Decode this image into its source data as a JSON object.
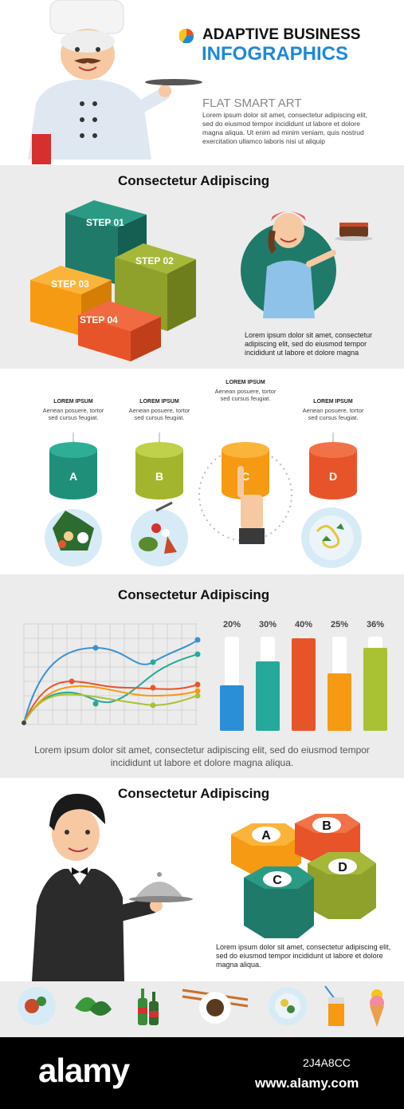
{
  "header": {
    "title_line1": "ADAPTIVE BUSINESS",
    "title_line2": "INFOGRAPHICS",
    "subtitle": "FLAT SMART ART",
    "lorem": "Lorem ipsum dolor sit amet, consectetur adipiscing elit, sed do eiusmod tempor incididunt ut labore et dolore magna aliqua. Ut enim ad minim veniam, quis nostrud exercitation ullamco laboris nisi ut aliquip"
  },
  "section1": {
    "heading": "Consectetur Adipiscing",
    "steps": [
      "STEP 01",
      "STEP 02",
      "STEP 03",
      "STEP 04"
    ],
    "lorem": "Lorem ipsum dolor sit amet, consectetur adipiscing elit, sed do eiusmod tempor incididunt ut labore et dolore magna"
  },
  "section2": {
    "items": [
      {
        "letter": "A",
        "title": "LOREM IPSUM",
        "text": "Aenean posuere, tortor sed cursus feugiat.",
        "color": "#1f8f7a"
      },
      {
        "letter": "B",
        "title": "LOREM IPSUM",
        "text": "Aenean posuere, tortor sed cursus feugiat.",
        "color": "#a3b52c"
      },
      {
        "letter": "C",
        "title": "LOREM IPSUM",
        "text": "Aenean posuere, tortor sed cursus feugiat.",
        "color": "#f59a12"
      },
      {
        "letter": "D",
        "title": "LOREM IPSUM",
        "text": "Aenean posuere, tortor sed cursus feugiat.",
        "color": "#e8542a"
      }
    ]
  },
  "section3": {
    "heading": "Consectetur Adipiscing",
    "bars": [
      {
        "label": "20%",
        "value": 20,
        "color": "#2a8fd6"
      },
      {
        "label": "30%",
        "value": 30,
        "color": "#25a99a"
      },
      {
        "label": "40%",
        "value": 40,
        "color": "#e8542a"
      },
      {
        "label": "25%",
        "value": 25,
        "color": "#f59a12"
      },
      {
        "label": "36%",
        "value": 36,
        "color": "#a9c233"
      }
    ],
    "lorem": "Lorem ipsum dolor sit amet, consectetur adipiscing elit, sed do eiusmod tempor incididunt ut labore et dolore magna aliqua."
  },
  "section4": {
    "heading": "Consectetur Adipiscing",
    "hex_labels": [
      "A",
      "B",
      "C",
      "D"
    ],
    "lorem": "Lorem ipsum dolor sit amet, consectetur adipiscing elit, sed do eiusmod tempor incididunt ut labore et dolore magna aliqua."
  },
  "footer_icons": [
    "dish-icon",
    "spinach-icon",
    "bottles-icon",
    "coffee-icon",
    "salad-icon",
    "juice-icon",
    "ice-cream-icon"
  ],
  "watermark": {
    "brand": "alamy",
    "image_id": "2J4A8CC",
    "url": "www.alamy.com"
  },
  "colors": {
    "teal": "#1f7a6a",
    "olive": "#8fa12a",
    "orange": "#f59a12",
    "red": "#e8542a",
    "blue_title": "#1e88d8",
    "band_grey": "#ececec"
  }
}
